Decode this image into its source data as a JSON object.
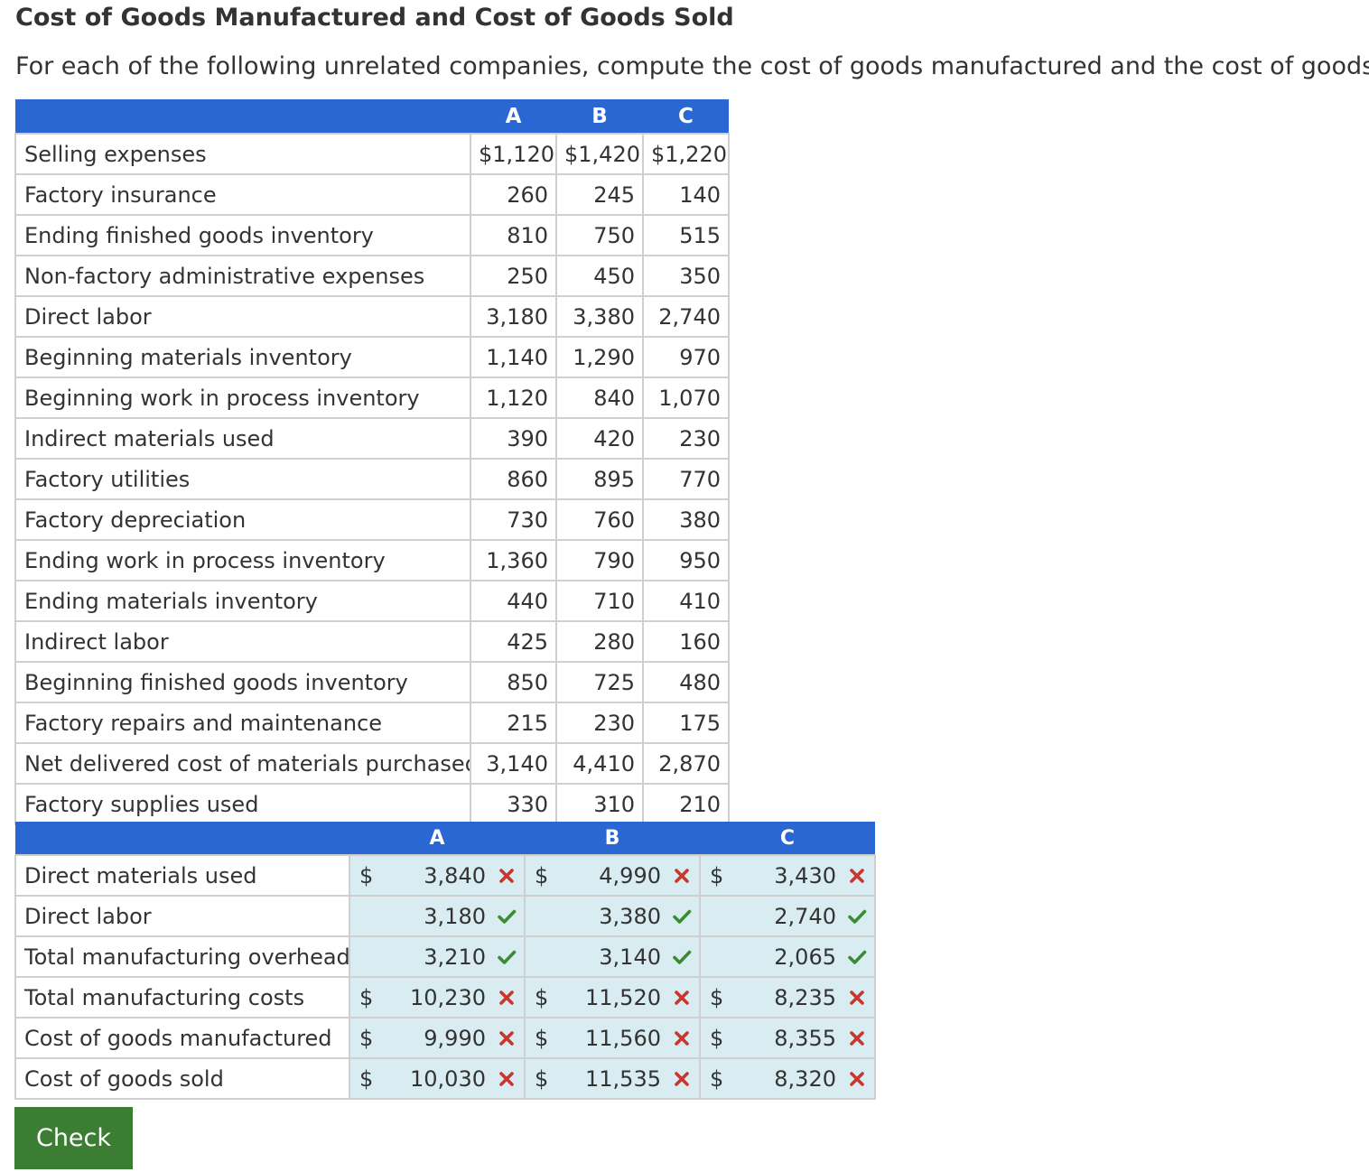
{
  "page": {
    "title": "Cost of Goods Manufactured and Cost of Goods Sold",
    "instructions": "For each of the following unrelated companies, compute the cost of goods manufactured and the cost of goods sold"
  },
  "data_table": {
    "headers": [
      "A",
      "B",
      "C"
    ],
    "rows": [
      {
        "label": "Selling expenses",
        "a": "$1,120",
        "b": "$1,420",
        "c": "$1,220"
      },
      {
        "label": "Factory insurance",
        "a": "260",
        "b": "245",
        "c": "140"
      },
      {
        "label": "Ending finished goods inventory",
        "a": "810",
        "b": "750",
        "c": "515"
      },
      {
        "label": "Non-factory administrative expenses",
        "a": "250",
        "b": "450",
        "c": "350"
      },
      {
        "label": "Direct labor",
        "a": "3,180",
        "b": "3,380",
        "c": "2,740"
      },
      {
        "label": "Beginning materials inventory",
        "a": "1,140",
        "b": "1,290",
        "c": "970"
      },
      {
        "label": "Beginning work in process inventory",
        "a": "1,120",
        "b": "840",
        "c": "1,070"
      },
      {
        "label": "Indirect materials used",
        "a": "390",
        "b": "420",
        "c": "230"
      },
      {
        "label": "Factory utilities",
        "a": "860",
        "b": "895",
        "c": "770"
      },
      {
        "label": "Factory depreciation",
        "a": "730",
        "b": "760",
        "c": "380"
      },
      {
        "label": "Ending work in process inventory",
        "a": "1,360",
        "b": "790",
        "c": "950"
      },
      {
        "label": "Ending materials inventory",
        "a": "440",
        "b": "710",
        "c": "410"
      },
      {
        "label": "Indirect labor",
        "a": "425",
        "b": "280",
        "c": "160"
      },
      {
        "label": "Beginning finished goods inventory",
        "a": "850",
        "b": "725",
        "c": "480"
      },
      {
        "label": "Factory repairs and maintenance",
        "a": "215",
        "b": "230",
        "c": "175"
      },
      {
        "label": "Net delivered cost of materials purchased",
        "a": "3,140",
        "b": "4,410",
        "c": "2,870"
      },
      {
        "label": "Factory supplies used",
        "a": "330",
        "b": "310",
        "c": "210"
      }
    ]
  },
  "answer_table": {
    "headers": [
      "A",
      "B",
      "C"
    ],
    "currency_symbol": "$",
    "rows": [
      {
        "label": "Direct materials used",
        "a": "3,840",
        "a_status": "incorrect",
        "b": "4,990",
        "b_status": "incorrect",
        "c": "3,430",
        "c_status": "incorrect"
      },
      {
        "label": "Direct labor",
        "a": "3,180",
        "a_status": "correct",
        "b": "3,380",
        "b_status": "correct",
        "c": "2,740",
        "c_status": "correct"
      },
      {
        "label": "Total manufacturing overhead",
        "a": "3,210",
        "a_status": "correct",
        "b": "3,140",
        "b_status": "correct",
        "c": "2,065",
        "c_status": "correct"
      },
      {
        "label": "Total manufacturing costs",
        "a": "10,230",
        "a_status": "incorrect",
        "b": "11,520",
        "b_status": "incorrect",
        "c": "8,235",
        "c_status": "incorrect"
      },
      {
        "label": "Cost of goods manufactured",
        "a": "9,990",
        "a_status": "incorrect",
        "b": "11,560",
        "b_status": "incorrect",
        "c": "8,355",
        "c_status": "incorrect"
      },
      {
        "label": "Cost of goods sold",
        "a": "10,030",
        "a_status": "incorrect",
        "b": "11,535",
        "b_status": "incorrect",
        "c": "8,320",
        "c_status": "incorrect"
      }
    ]
  },
  "check_button": {
    "label": "Check"
  },
  "colors": {
    "header_bg": "#2a67d3",
    "input_bg": "#d8ecf2",
    "correct": "#3c8a34",
    "incorrect": "#c8362e",
    "button_bg": "#3c7d34"
  },
  "icons": {
    "correct": "check-icon",
    "incorrect": "x-icon"
  }
}
